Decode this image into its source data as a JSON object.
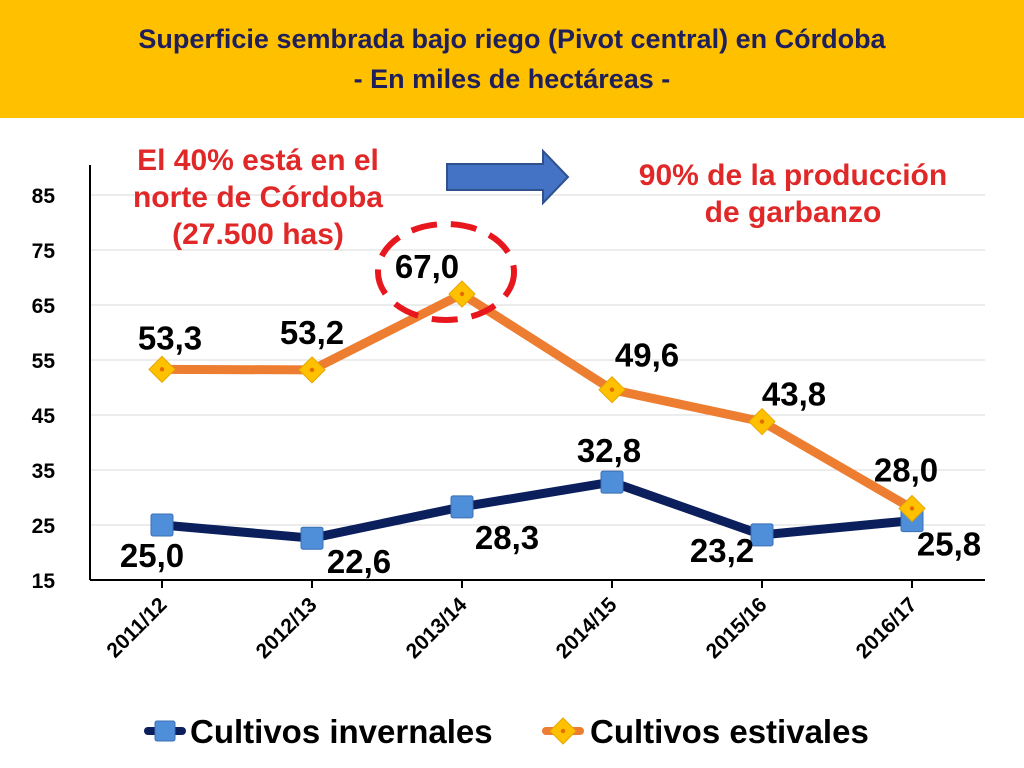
{
  "header": {
    "title_line1": "Superficie sembrada bajo riego (Pivot central) en Córdoba",
    "title_line2": "- En miles de hectáreas -"
  },
  "annotations": {
    "left": [
      "El 40% está en el",
      "norte de Córdoba",
      "(27.500 has)"
    ],
    "right": [
      "90% de la producción",
      "de garbanzo"
    ]
  },
  "colors": {
    "banner": "#ffc000",
    "title_text": "#1f1f5a",
    "annotation": "#e02828",
    "winter_line": "#0b1f5c",
    "winter_marker": "#4f8fd9",
    "summer_line": "#ed7d31",
    "summer_marker": "#ffc000",
    "highlight_ellipse": "#e8171d",
    "arrow": "#4472c4"
  },
  "chart_data": {
    "type": "line",
    "title": "Superficie sembrada bajo riego (Pivot central) en Córdoba - En miles de hectáreas -",
    "xlabel": "",
    "ylabel": "",
    "categories": [
      "2011/12",
      "2012/13",
      "2013/14",
      "2014/15",
      "2015/16",
      "2016/17"
    ],
    "yticks": [
      15,
      25,
      35,
      45,
      55,
      65,
      75,
      85
    ],
    "ylim": [
      15,
      85
    ],
    "grid": true,
    "legend_position": "bottom",
    "series": [
      {
        "name": "Cultivos invernales",
        "values": [
          25.0,
          22.6,
          28.3,
          32.8,
          23.2,
          25.8
        ],
        "labels": [
          "25,0",
          "22,6",
          "28,3",
          "32,8",
          "23,2",
          "25,8"
        ],
        "marker": "square"
      },
      {
        "name": "Cultivos estivales",
        "values": [
          53.3,
          53.2,
          67.0,
          49.6,
          43.8,
          28.0
        ],
        "labels": [
          "53,3",
          "53,2",
          "67,0",
          "49,6",
          "43,8",
          "28,0"
        ],
        "marker": "diamond"
      }
    ],
    "highlight": {
      "series": "Cultivos estivales",
      "category": "2013/14"
    }
  }
}
